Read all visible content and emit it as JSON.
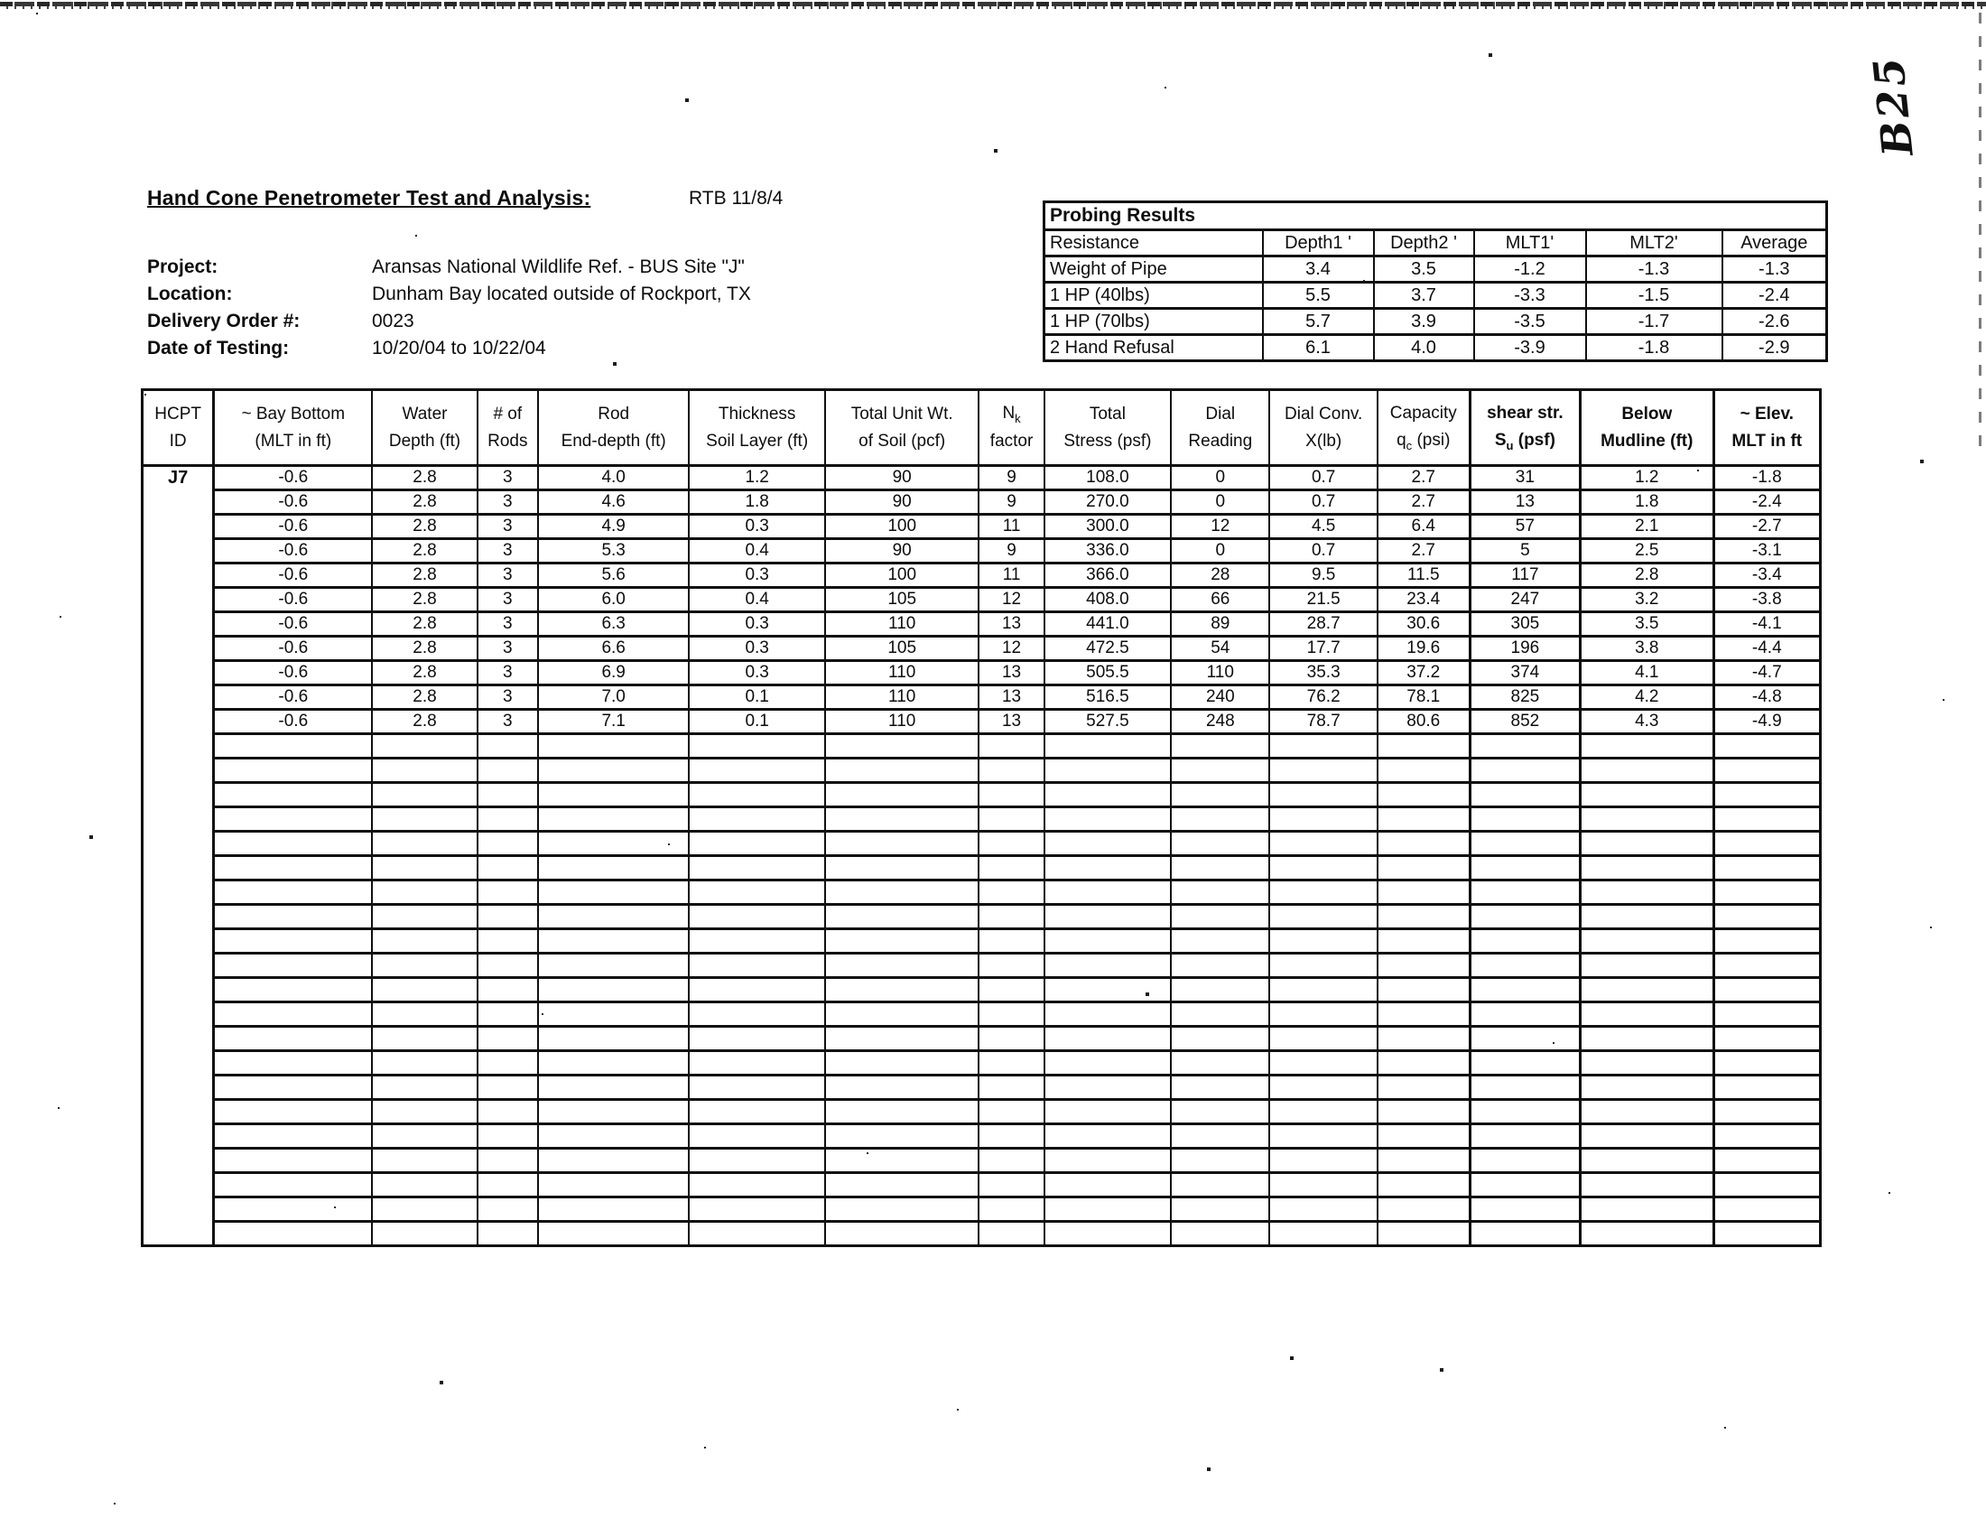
{
  "page": {
    "handwritten_mark": "B25"
  },
  "header": {
    "title": "Hand Cone Penetrometer Test and Analysis:",
    "ref": "RTB 11/8/4",
    "info": [
      {
        "label": "Project:",
        "value": "Aransas National Wildlife Ref. - BUS Site \"J\""
      },
      {
        "label": "Location:",
        "value": "Dunham Bay located outside of Rockport, TX"
      },
      {
        "label": "Delivery Order #:",
        "value": "0023"
      },
      {
        "label": "Date of Testing:",
        "value": "10/20/04 to 10/22/04"
      }
    ]
  },
  "probing": {
    "title": "Probing Results",
    "columns": [
      "Resistance",
      "Depth1 '",
      "Depth2 '",
      "MLT1'",
      "MLT2'",
      "Average"
    ],
    "rows": [
      [
        "Weight of Pipe",
        "3.4",
        "3.5",
        "-1.2",
        "-1.3",
        "-1.3"
      ],
      [
        "1 HP (40lbs)",
        "5.5",
        "3.7",
        "-3.3",
        "-1.5",
        "-2.4"
      ],
      [
        "1 HP (70lbs)",
        "5.7",
        "3.9",
        "-3.5",
        "-1.7",
        "-2.6"
      ],
      [
        "2 Hand Refusal",
        "6.1",
        "4.0",
        "-3.9",
        "-1.8",
        "-2.9"
      ]
    ]
  },
  "main_table": {
    "id_header": [
      "HCPT",
      "ID"
    ],
    "hcpt_id": "J7",
    "columns": [
      {
        "l1": "~ Bay Bottom",
        "l2": "(MLT in ft)"
      },
      {
        "l1": "Water",
        "l2": "Depth (ft)"
      },
      {
        "l1": "# of",
        "l2": "Rods"
      },
      {
        "l1": "Rod",
        "l2": "End-depth (ft)"
      },
      {
        "l1": "Thickness",
        "l2": "Soil Layer (ft)"
      },
      {
        "l1": "Total Unit Wt.",
        "l2": "of Soil (pcf)"
      },
      {
        "l1": "N",
        "l1sub": "k",
        "l2": "factor"
      },
      {
        "l1": "Total",
        "l2": "Stress (psf)"
      },
      {
        "l1": "Dial",
        "l2": "Reading"
      },
      {
        "l1": "Dial Conv.",
        "l2": "X(lb)"
      },
      {
        "l1": "Capacity",
        "l2": "q",
        "l2sub": "c",
        "l2rest": " (psi)"
      },
      {
        "l1": "shear str.",
        "l2": "S",
        "l2sub": "u",
        "l2rest": " (psf)",
        "bold": true
      },
      {
        "l1": "Below",
        "l2": "Mudline (ft)",
        "bold": true
      },
      {
        "l1": "~ Elev.",
        "l2": "MLT in ft",
        "bold": true
      }
    ],
    "rows": [
      [
        "-0.6",
        "2.8",
        "3",
        "4.0",
        "1.2",
        "90",
        "9",
        "108.0",
        "0",
        "0.7",
        "2.7",
        "31",
        "1.2",
        "-1.8"
      ],
      [
        "-0.6",
        "2.8",
        "3",
        "4.6",
        "1.8",
        "90",
        "9",
        "270.0",
        "0",
        "0.7",
        "2.7",
        "13",
        "1.8",
        "-2.4"
      ],
      [
        "-0.6",
        "2.8",
        "3",
        "4.9",
        "0.3",
        "100",
        "11",
        "300.0",
        "12",
        "4.5",
        "6.4",
        "57",
        "2.1",
        "-2.7"
      ],
      [
        "-0.6",
        "2.8",
        "3",
        "5.3",
        "0.4",
        "90",
        "9",
        "336.0",
        "0",
        "0.7",
        "2.7",
        "5",
        "2.5",
        "-3.1"
      ],
      [
        "-0.6",
        "2.8",
        "3",
        "5.6",
        "0.3",
        "100",
        "11",
        "366.0",
        "28",
        "9.5",
        "11.5",
        "117",
        "2.8",
        "-3.4"
      ],
      [
        "-0.6",
        "2.8",
        "3",
        "6.0",
        "0.4",
        "105",
        "12",
        "408.0",
        "66",
        "21.5",
        "23.4",
        "247",
        "3.2",
        "-3.8"
      ],
      [
        "-0.6",
        "2.8",
        "3",
        "6.3",
        "0.3",
        "110",
        "13",
        "441.0",
        "89",
        "28.7",
        "30.6",
        "305",
        "3.5",
        "-4.1"
      ],
      [
        "-0.6",
        "2.8",
        "3",
        "6.6",
        "0.3",
        "105",
        "12",
        "472.5",
        "54",
        "17.7",
        "19.6",
        "196",
        "3.8",
        "-4.4"
      ],
      [
        "-0.6",
        "2.8",
        "3",
        "6.9",
        "0.3",
        "110",
        "13",
        "505.5",
        "110",
        "35.3",
        "37.2",
        "374",
        "4.1",
        "-4.7"
      ],
      [
        "-0.6",
        "2.8",
        "3",
        "7.0",
        "0.1",
        "110",
        "13",
        "516.5",
        "240",
        "76.2",
        "78.1",
        "825",
        "4.2",
        "-4.8"
      ],
      [
        "-0.6",
        "2.8",
        "3",
        "7.1",
        "0.1",
        "110",
        "13",
        "527.5",
        "248",
        "78.7",
        "80.6",
        "852",
        "4.3",
        "-4.9"
      ]
    ],
    "empty_row_count": 21
  }
}
